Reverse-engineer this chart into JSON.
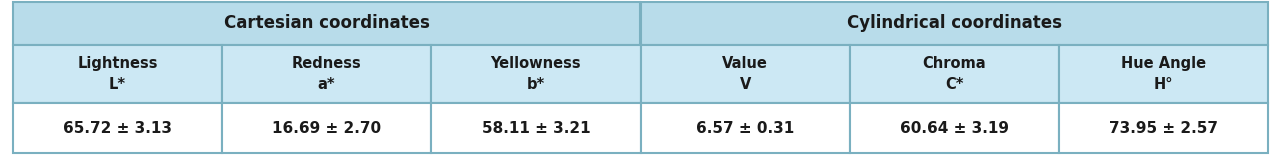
{
  "header1_text": "Cartesian coordinates",
  "header2_text": "Cylindrical coordinates",
  "col_headers": [
    [
      "Lightness",
      "L*"
    ],
    [
      "Redness",
      "a*"
    ],
    [
      "Yellowness",
      "b*"
    ],
    [
      "Value",
      "V"
    ],
    [
      "Chroma",
      "C*"
    ],
    [
      "Hue Angle",
      "H°"
    ]
  ],
  "data_row": [
    "65.72 ± 3.13",
    "16.69 ± 2.70",
    "58.11 ± 3.21",
    "6.57 ± 0.31",
    "60.64 ± 3.19",
    "73.95 ± 2.57"
  ],
  "header_bg": "#b8dcea",
  "subheader_bg": "#cce8f4",
  "data_bg": "#ffffff",
  "outer_border_color": "#7ab0c0",
  "inner_border_color": "#7ab0c0",
  "text_color": "#1a1a1a",
  "n_cartesian": 3,
  "n_cylindrical": 3,
  "fig_width": 12.81,
  "fig_height": 1.55,
  "dpi": 100
}
